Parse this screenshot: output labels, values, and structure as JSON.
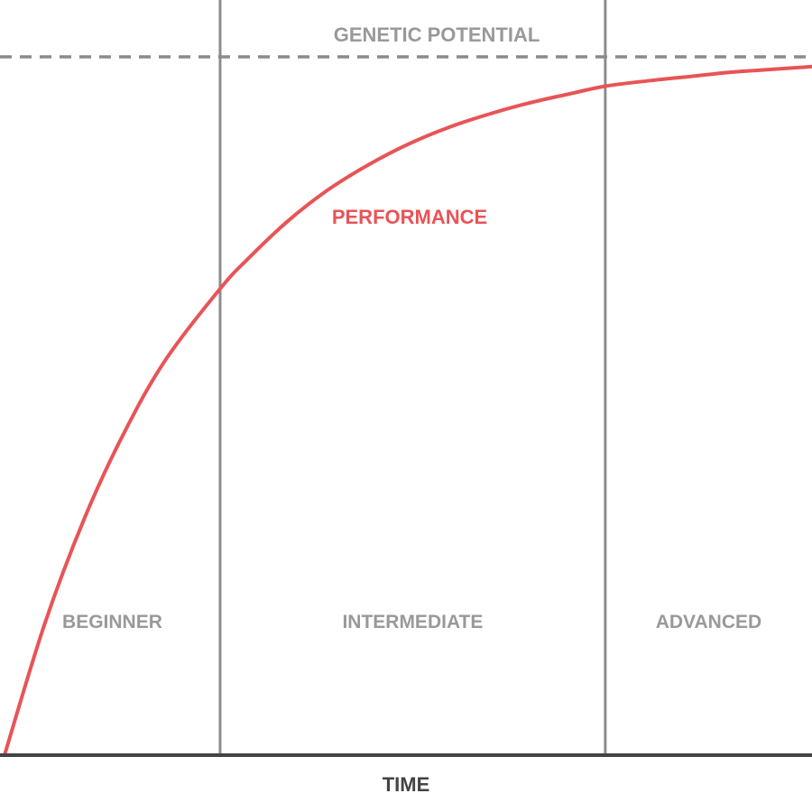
{
  "chart_data": {
    "type": "line",
    "xlabel": "TIME",
    "ylabel": "",
    "xlim": [
      0,
      100
    ],
    "ylim": [
      0,
      100
    ],
    "grid": false,
    "series": [
      {
        "name": "PERFORMANCE",
        "x": [
          0,
          5,
          10,
          15,
          20,
          26.7,
          30,
          35,
          40,
          45,
          50,
          55,
          60,
          65,
          70,
          74.4,
          80,
          85,
          90,
          95,
          100
        ],
        "y": [
          0,
          18.9,
          34.2,
          46.6,
          56.7,
          66.8,
          70.9,
          76.4,
          80.9,
          84.5,
          87.5,
          89.9,
          91.8,
          93.4,
          94.7,
          95.8,
          96.6,
          97.2,
          97.8,
          98.2,
          98.6
        ]
      }
    ],
    "reference_line": {
      "label": "GENETIC POTENTIAL",
      "y": 100
    },
    "stages": [
      {
        "label": "BEGINNER",
        "x_start": 0,
        "x_end": 26.7
      },
      {
        "label": "INTERMEDIATE",
        "x_start": 26.7,
        "x_end": 74.4
      },
      {
        "label": "ADVANCED",
        "x_start": 74.4,
        "x_end": 100
      }
    ],
    "colors": {
      "performance": "#e85457",
      "reference": "#8a8a8a",
      "stage_divider": "#8c8c8c",
      "axis": "#444444",
      "stage_text": "#999999",
      "axis_text": "#444444"
    }
  }
}
